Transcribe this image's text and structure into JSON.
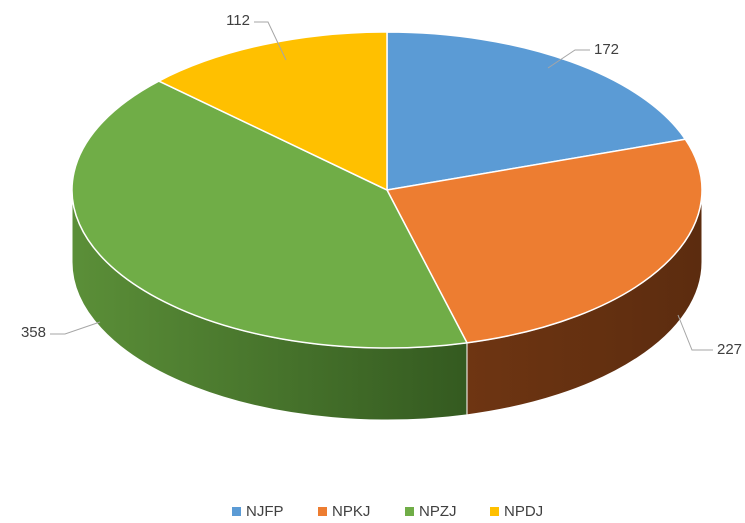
{
  "chart_data": {
    "type": "pie",
    "categories": [
      "NJFP",
      "NPKJ",
      "NPZJ",
      "NPDJ"
    ],
    "values": [
      172,
      227,
      358,
      112
    ],
    "colors": [
      "#5b9bd5",
      "#ed7d31",
      "#70ad47",
      "#ffc000"
    ]
  }
}
